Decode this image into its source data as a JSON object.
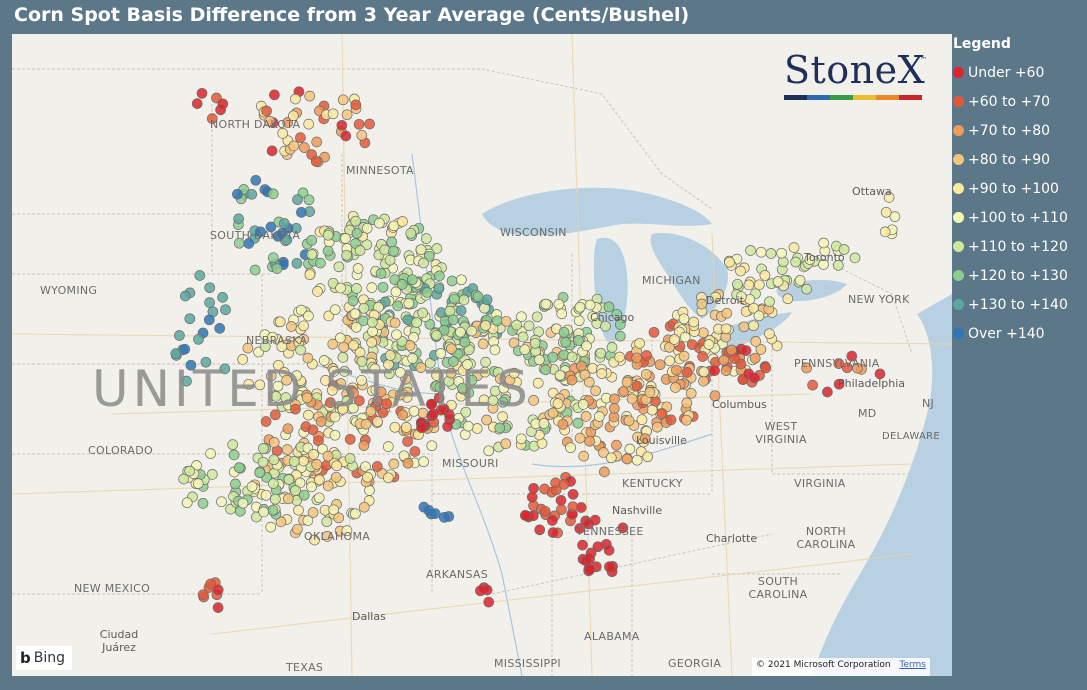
{
  "title": "Corn Spot Basis Difference from 3 Year Average (Cents/Bushel)",
  "legend": {
    "title": "Legend",
    "items": [
      {
        "label": "Under +60",
        "color": "#d9252b"
      },
      {
        "label": "+60 to +70",
        "color": "#e4583a"
      },
      {
        "label": "+70 to +80",
        "color": "#ee9a5a"
      },
      {
        "label": "+80 to +90",
        "color": "#f6c47d"
      },
      {
        "label": "+90 to +100",
        "color": "#fbe9a0"
      },
      {
        "label": "+100 to +110",
        "color": "#f5f5b6"
      },
      {
        "label": "+110 to +120",
        "color": "#cfe79f"
      },
      {
        "label": "+120 to +130",
        "color": "#8ccc8f"
      },
      {
        "label": "+130 to +140",
        "color": "#5aa7a0"
      },
      {
        "label": "Over +140",
        "color": "#2f76b8"
      }
    ]
  },
  "logo": {
    "text": "StoneX",
    "tm": "™",
    "bar_colors": [
      "#1d2f5a",
      "#2e6bb0",
      "#3a9a4a",
      "#e6c12b",
      "#e88a2c",
      "#c8262b"
    ]
  },
  "map": {
    "country_label": "UNITED STATES",
    "state_labels": [
      "NORTH DAKOTA",
      "SOUTH DAKOTA",
      "MINNESOTA",
      "WISCONSIN",
      "WYOMING",
      "NEBRASKA",
      "COLORADO",
      "MISSOURI",
      "KENTUCKY",
      "TENNESSEE",
      "OKLAHOMA",
      "ARKANSAS",
      "NEW MEXICO",
      "ALABAMA",
      "MISSISSIPPI",
      "GEORGIA",
      "TEXAS",
      "WEST VIRGINIA",
      "VIRGINIA",
      "NORTH CAROLINA",
      "SOUTH CAROLINA",
      "PENNSYLVANIA",
      "NEW YORK",
      "MD",
      "DELAWARE",
      "NJ",
      "MICHIGAN"
    ],
    "city_labels": [
      "Ottawa",
      "Toronto",
      "Chicago",
      "Detroit",
      "Columbus",
      "Louisville",
      "Nashville",
      "Charlotte",
      "Philadelphia",
      "Dallas",
      "Ciudad Juárez"
    ],
    "bing_label": "Bing",
    "copyright": "© 2021 Microsoft Corporation",
    "terms": "Terms"
  }
}
